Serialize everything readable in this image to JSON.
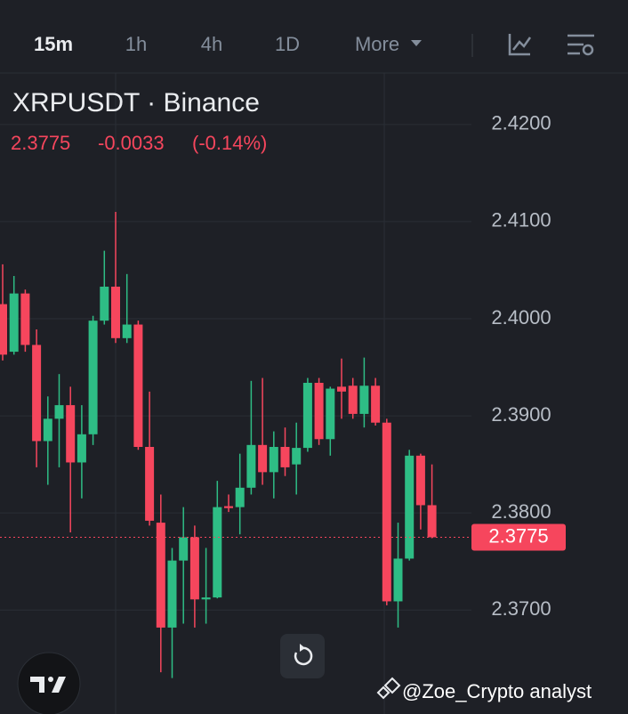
{
  "toolbar": {
    "intervals": [
      "15m",
      "1h",
      "4h",
      "1D"
    ],
    "more": "More"
  },
  "chart_data": {
    "type": "candlestick",
    "title": "XRPUSDT · Binance",
    "last_price": 2.3775,
    "change": "-0.0033",
    "change_percent": "(-0.14%)",
    "up_color": "#2ebd85",
    "down_color": "#f6465d",
    "open": [
      2.4015,
      2.3966,
      2.4026,
      2.3973,
      2.3874,
      2.3897,
      2.3911,
      2.3852,
      2.3881,
      2.3998,
      2.4033,
      2.398,
      2.3994,
      2.3868,
      2.379,
      2.3682,
      2.3751,
      2.3775,
      2.3711,
      2.3713,
      2.3807,
      2.3806,
      2.3826,
      2.387,
      2.3842,
      2.3868,
      2.385,
      2.3867,
      2.3934,
      2.3876,
      2.393,
      2.3931,
      2.3902,
      2.3931,
      2.3893,
      2.3709,
      2.3753,
      2.3859,
      2.3808
    ],
    "high": [
      2.4056,
      2.4044,
      2.403,
      2.3989,
      2.392,
      2.3943,
      2.393,
      2.3911,
      2.4003,
      2.407,
      2.411,
      2.4046,
      2.3998,
      2.3925,
      2.3819,
      2.3764,
      2.3806,
      2.3787,
      2.3764,
      2.3833,
      2.3819,
      2.3861,
      2.3936,
      2.3939,
      2.3884,
      2.3888,
      2.3893,
      2.3939,
      2.3939,
      2.393,
      2.3959,
      2.3939,
      2.396,
      2.3939,
      2.3897,
      2.379,
      2.3865,
      2.3861,
      2.385
    ],
    "low": [
      2.3957,
      2.3963,
      2.3966,
      2.3847,
      2.3829,
      2.3847,
      2.378,
      2.3815,
      2.387,
      2.3994,
      2.3975,
      2.3975,
      2.3865,
      2.3787,
      2.3636,
      2.363,
      2.3686,
      2.3682,
      2.3686,
      2.3712,
      2.3801,
      2.3778,
      2.3819,
      2.3829,
      2.3815,
      2.3838,
      2.3819,
      2.3863,
      2.387,
      2.3859,
      2.3897,
      2.3897,
      2.3888,
      2.389,
      2.3705,
      2.3682,
      2.3751,
      2.3783,
      2.3774
    ],
    "close": [
      2.3963,
      2.4026,
      2.3973,
      2.3874,
      2.3897,
      2.3911,
      2.3852,
      2.3881,
      2.3998,
      2.4033,
      2.398,
      2.3994,
      2.3868,
      2.3792,
      2.3682,
      2.3751,
      2.3775,
      2.3711,
      2.3713,
      2.3806,
      2.3805,
      2.3826,
      2.387,
      2.3842,
      2.3868,
      2.3847,
      2.3867,
      2.3934,
      2.3876,
      2.3928,
      2.3925,
      2.3902,
      2.3931,
      2.3893,
      2.3709,
      2.3753,
      2.3859,
      2.3808,
      2.3775
    ],
    "ylim": [
      2.3593,
      2.4253
    ],
    "yticks": [
      {
        "value": 2.37,
        "label": "2.3700"
      },
      {
        "value": 2.38,
        "label": "2.3800"
      },
      {
        "value": 2.39,
        "label": "2.3900"
      },
      {
        "value": 2.4,
        "label": "2.4000"
      },
      {
        "value": 2.41,
        "label": "2.4100"
      },
      {
        "value": 2.42,
        "label": "2.4200"
      }
    ],
    "grid": true
  },
  "watermark": "@Zoe_Crypto analyst"
}
